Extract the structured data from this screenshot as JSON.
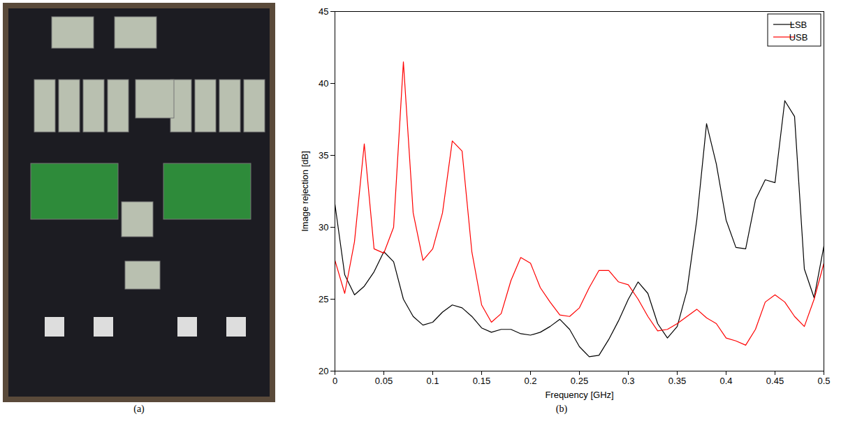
{
  "photo": {
    "caption": "(a)"
  },
  "chart_data": {
    "type": "line",
    "caption": "(b)",
    "x_label": "Frequency [GHz]",
    "y_label": "Image rejection [dB]",
    "x": [
      0,
      0.01,
      0.02,
      0.03,
      0.04,
      0.05,
      0.06,
      0.07,
      0.08,
      0.09,
      0.1,
      0.11,
      0.12,
      0.13,
      0.14,
      0.15,
      0.16,
      0.17,
      0.18,
      0.19,
      0.2,
      0.21,
      0.22,
      0.23,
      0.24,
      0.25,
      0.26,
      0.27,
      0.28,
      0.29,
      0.3,
      0.31,
      0.32,
      0.33,
      0.34,
      0.35,
      0.36,
      0.37,
      0.38,
      0.39,
      0.4,
      0.41,
      0.42,
      0.43,
      0.44,
      0.45,
      0.46,
      0.47,
      0.48,
      0.49,
      0.5
    ],
    "series": [
      {
        "name": "LSB",
        "color": "#000000",
        "values": [
          31.6,
          26.7,
          25.3,
          25.9,
          26.9,
          28.3,
          27.6,
          25,
          23.8,
          23.2,
          23.4,
          24.1,
          24.6,
          24.4,
          23.8,
          23,
          22.7,
          22.9,
          22.9,
          22.6,
          22.5,
          22.7,
          23.1,
          23.6,
          22.9,
          21.7,
          21,
          21.1,
          22.2,
          23.5,
          25,
          26.2,
          25.4,
          23.3,
          22.3,
          23.1,
          25.6,
          30.5,
          37.2,
          34.4,
          30.5,
          28.6,
          28.5,
          31.9,
          33.3,
          33.1,
          38.8,
          37.7,
          27.1,
          25.1,
          28.7
        ]
      },
      {
        "name": "USB",
        "color": "#ff0000",
        "values": [
          27.7,
          25.4,
          29,
          35.8,
          28.5,
          28.2,
          30,
          41.5,
          31,
          27.7,
          28.5,
          31,
          36,
          35.3,
          28.3,
          24.6,
          23.4,
          24,
          26.3,
          27.9,
          27.5,
          25.8,
          24.8,
          23.9,
          23.8,
          24.4,
          25.8,
          27,
          27,
          26.2,
          26,
          25,
          23.8,
          22.8,
          22.9,
          23.3,
          23.8,
          24.3,
          23.7,
          23.3,
          22.3,
          22.1,
          21.8,
          22.9,
          24.8,
          25.3,
          24.8,
          23.8,
          23.1,
          25,
          27.5
        ]
      }
    ],
    "xlim": [
      0,
      0.5
    ],
    "xticks": [
      0,
      0.05,
      0.1,
      0.15,
      0.2,
      0.25,
      0.3,
      0.35,
      0.4,
      0.45,
      0.5
    ],
    "ylim": [
      20,
      45
    ],
    "yticks": [
      20,
      25,
      30,
      35,
      40,
      45
    ],
    "grid": false,
    "legend": "top-right"
  }
}
